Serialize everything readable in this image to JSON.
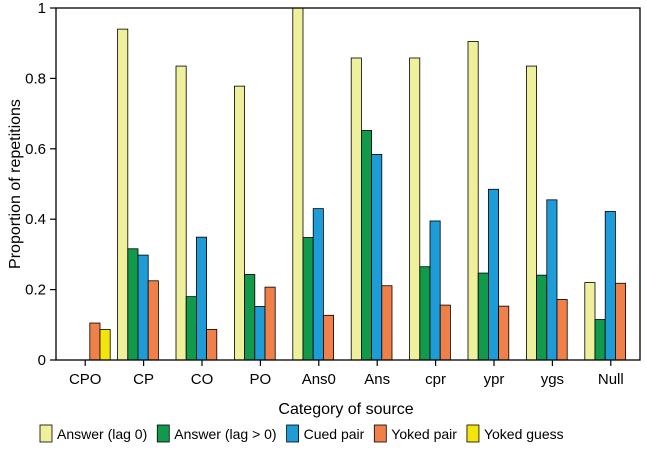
{
  "chart_data": {
    "type": "bar",
    "title": "",
    "xlabel": "Category of source",
    "ylabel": "Proportion of repetitions",
    "ylim": [
      0,
      1
    ],
    "yticks": [
      0,
      0.2,
      0.4,
      0.6,
      0.8,
      1
    ],
    "ytick_labels": [
      "0",
      "0.2",
      "0.4",
      "0.6",
      "0.8",
      "1"
    ],
    "grid": false,
    "legend_position": "bottom",
    "categories": [
      "CPO",
      "CP",
      "CO",
      "PO",
      "Ans0",
      "Ans",
      "cpr",
      "ypr",
      "ygs",
      "Null"
    ],
    "series": [
      {
        "name": "Answer (lag 0)",
        "color": "#eef09c",
        "values": [
          0,
          0.94,
          0.835,
          0.778,
          1.0,
          0.858,
          0.858,
          0.905,
          0.835,
          0.22
        ]
      },
      {
        "name": "Answer (lag > 0)",
        "color": "#129a4c",
        "values": [
          0,
          0.316,
          0.18,
          0.243,
          0.348,
          0.652,
          0.265,
          0.247,
          0.241,
          0.115
        ]
      },
      {
        "name": "Cued pair",
        "color": "#1e9cd8",
        "values": [
          0,
          0.298,
          0.349,
          0.152,
          0.43,
          0.584,
          0.395,
          0.485,
          0.455,
          0.422
        ]
      },
      {
        "name": "Yoked pair",
        "color": "#f0804a",
        "values": [
          0.105,
          0.225,
          0.087,
          0.207,
          0.127,
          0.211,
          0.156,
          0.153,
          0.172,
          0.218
        ]
      },
      {
        "name": "Yoked guess",
        "color": "#f4e40c",
        "values": [
          0.087,
          null,
          null,
          null,
          null,
          null,
          null,
          null,
          null,
          null
        ]
      }
    ]
  }
}
